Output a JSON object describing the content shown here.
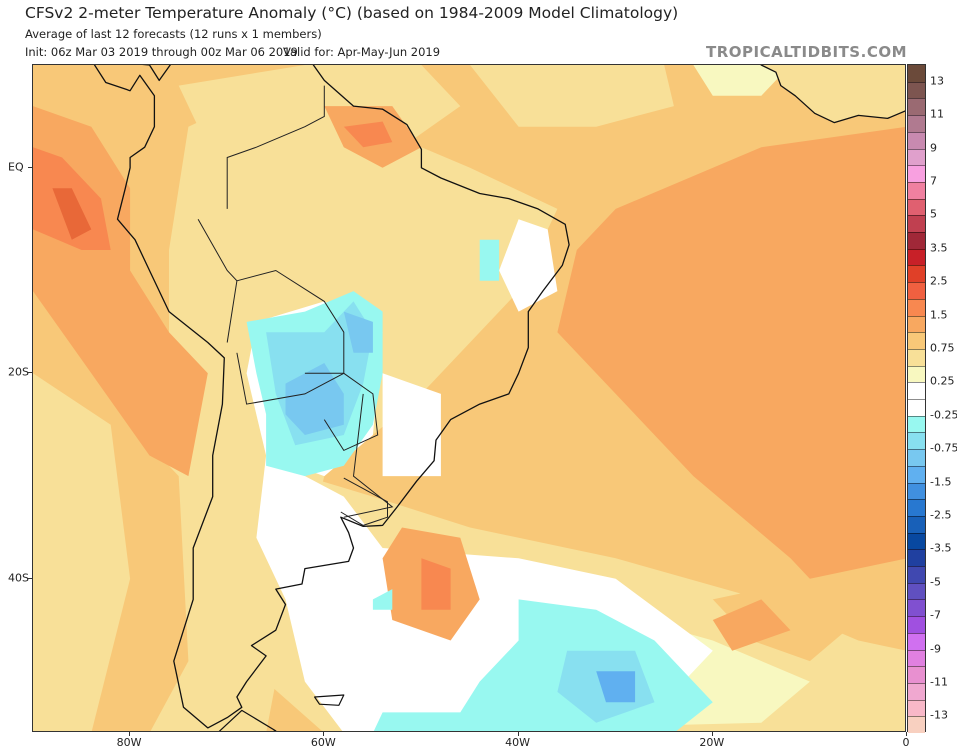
{
  "header": {
    "title": "CFSv2 2-meter Temperature Anomaly (°C) (based on 1984-2009 Model Climatology)",
    "subtitle": "Average of last 12 forecasts (12 runs x 1 members)",
    "init": "Init: 06z Mar 03 2019 through 00z Mar 06 2019",
    "valid": "Valid for: Apr-May-Jun 2019",
    "brand": "TROPICALTIDBITS.COM"
  },
  "map": {
    "region": "South America / South Atlantic",
    "lon_range": [
      -90,
      0
    ],
    "lat_range": [
      -55,
      10
    ],
    "lat_ticks": [
      {
        "value": 0,
        "label": "EQ"
      },
      {
        "value": -20,
        "label": "20S"
      },
      {
        "value": -40,
        "label": "40S"
      }
    ],
    "lon_ticks": [
      {
        "value": -80,
        "label": "80W"
      },
      {
        "value": -60,
        "label": "60W"
      },
      {
        "value": -40,
        "label": "40W"
      },
      {
        "value": -20,
        "label": "20W"
      },
      {
        "value": 0,
        "label": "0"
      }
    ]
  },
  "colorbar": {
    "labels": [
      "13",
      "11",
      "9",
      "7",
      "5",
      "3.5",
      "2.5",
      "1.5",
      "0.75",
      "0.25",
      "-0.25",
      "-0.75",
      "-1.5",
      "-2.5",
      "-3.5",
      "-5",
      "-7",
      "-9",
      "-11",
      "-13"
    ],
    "colors": [
      "#6b4a3a",
      "#7d5550",
      "#9a6a72",
      "#b07a90",
      "#c88ab0",
      "#e0a0cc",
      "#f8a0e0",
      "#f080a0",
      "#e06070",
      "#c04050",
      "#a02838",
      "#c82028",
      "#e04028",
      "#f06040",
      "#f88850",
      "#f8a860",
      "#f8c878",
      "#f8e098",
      "#f8f8c0",
      "#ffffff",
      "#ffffff",
      "#98f8f0",
      "#88e0f0",
      "#78c8f0",
      "#60b0f0",
      "#4090e0",
      "#2878d0",
      "#1860b8",
      "#0848a0",
      "#2040a0",
      "#4048b0",
      "#6050c0",
      "#8050d0",
      "#a050e0",
      "#d070f0",
      "#e080e0",
      "#e890d0",
      "#f0a8d0",
      "#f8b8c8",
      "#f8d0c0"
    ]
  }
}
